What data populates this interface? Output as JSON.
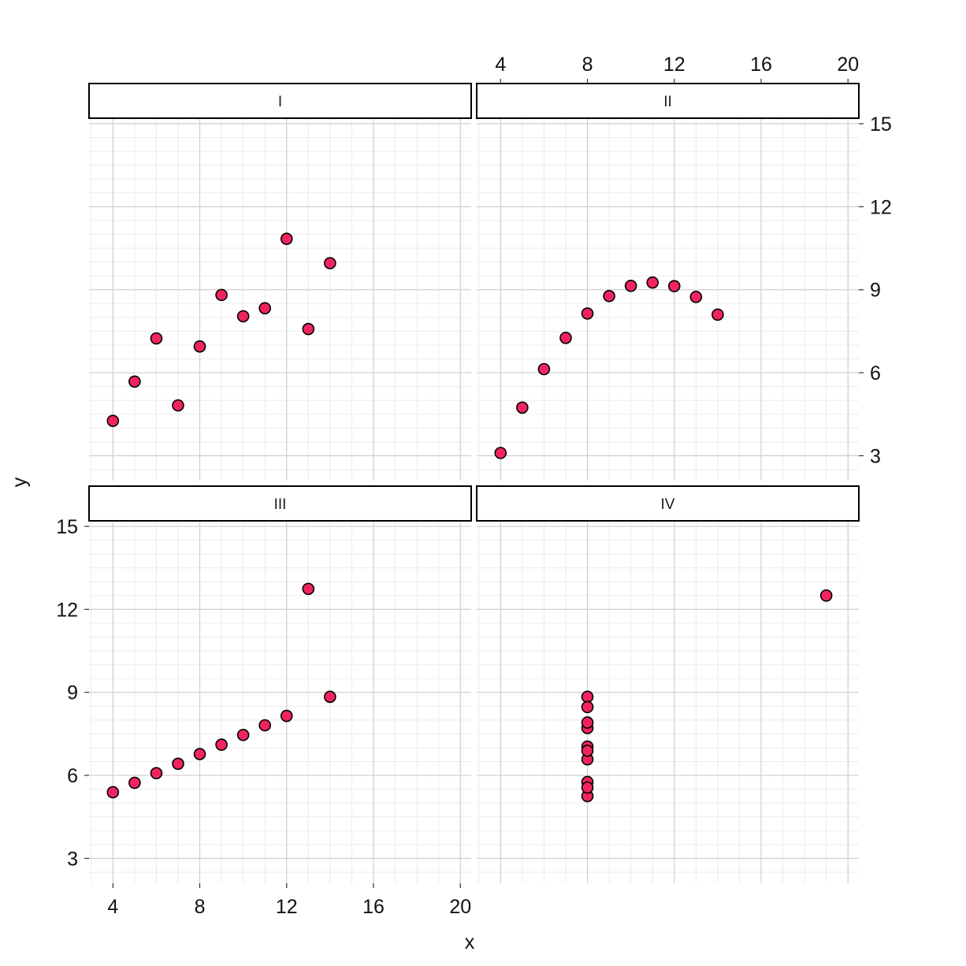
{
  "chart_data": {
    "type": "scatter",
    "xlabel": "x",
    "ylabel": "y",
    "xlim": [
      2.9,
      20.5
    ],
    "ylim": [
      2.1,
      15.2
    ],
    "x_ticks": [
      4,
      8,
      12,
      16,
      20
    ],
    "y_ticks": [
      3,
      6,
      9,
      12,
      15
    ],
    "grid": true,
    "point_color": "#f0245e",
    "panels": [
      {
        "label": "I",
        "points": [
          [
            10,
            8.04
          ],
          [
            8,
            6.95
          ],
          [
            13,
            7.58
          ],
          [
            9,
            8.81
          ],
          [
            11,
            8.33
          ],
          [
            14,
            9.96
          ],
          [
            6,
            7.24
          ],
          [
            4,
            4.26
          ],
          [
            12,
            10.84
          ],
          [
            7,
            4.82
          ],
          [
            5,
            5.68
          ]
        ]
      },
      {
        "label": "II",
        "points": [
          [
            10,
            9.14
          ],
          [
            8,
            8.14
          ],
          [
            13,
            8.74
          ],
          [
            9,
            8.77
          ],
          [
            11,
            9.26
          ],
          [
            14,
            8.1
          ],
          [
            6,
            6.13
          ],
          [
            4,
            3.1
          ],
          [
            12,
            9.13
          ],
          [
            7,
            7.26
          ],
          [
            5,
            4.74
          ]
        ]
      },
      {
        "label": "III",
        "points": [
          [
            10,
            7.46
          ],
          [
            8,
            6.77
          ],
          [
            13,
            12.74
          ],
          [
            9,
            7.11
          ],
          [
            11,
            7.81
          ],
          [
            14,
            8.84
          ],
          [
            6,
            6.08
          ],
          [
            4,
            5.39
          ],
          [
            12,
            8.15
          ],
          [
            7,
            6.42
          ],
          [
            5,
            5.73
          ]
        ]
      },
      {
        "label": "IV",
        "points": [
          [
            8,
            6.58
          ],
          [
            8,
            5.76
          ],
          [
            8,
            7.71
          ],
          [
            8,
            8.84
          ],
          [
            8,
            8.47
          ],
          [
            8,
            7.04
          ],
          [
            8,
            5.25
          ],
          [
            19,
            12.5
          ],
          [
            8,
            5.56
          ],
          [
            8,
            7.91
          ],
          [
            8,
            6.89
          ]
        ]
      }
    ]
  }
}
